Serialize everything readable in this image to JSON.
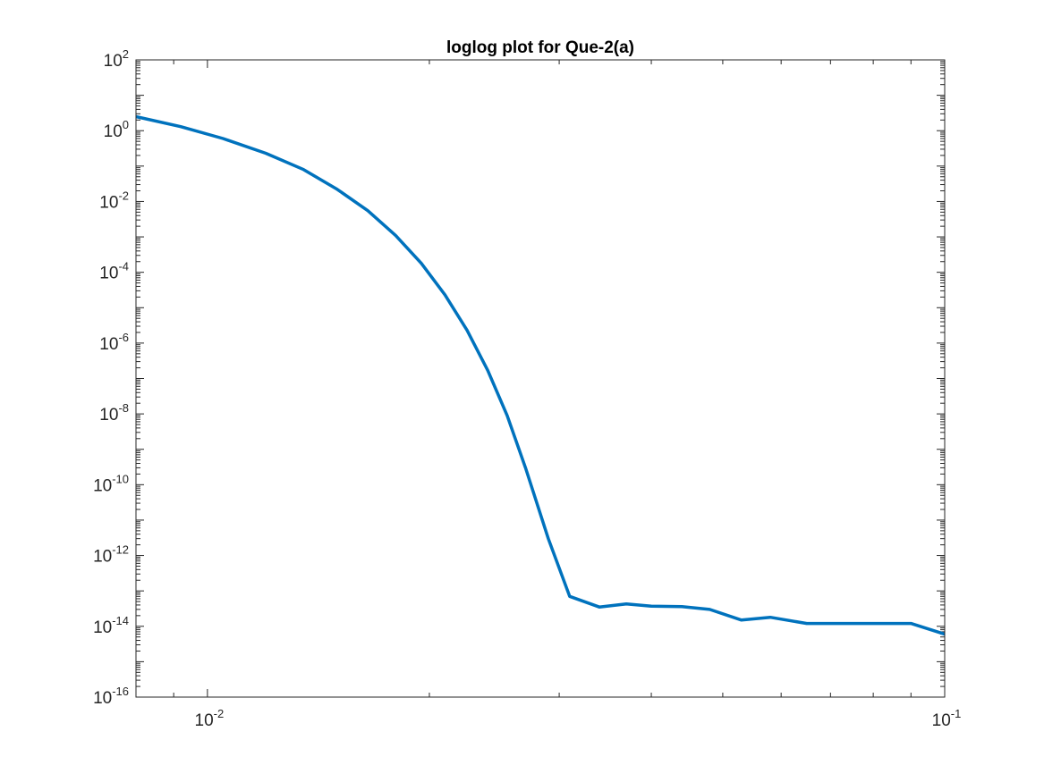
{
  "chart_data": {
    "type": "line",
    "title": "loglog plot for Que-2(a)",
    "xlabel": "",
    "ylabel": "",
    "xscale": "log",
    "yscale": "log",
    "xlim": [
      0.008,
      0.1
    ],
    "ylim": [
      1e-16,
      100
    ],
    "x_ticks": [
      {
        "value": 0.01,
        "base": "10",
        "exp": "-2"
      },
      {
        "value": 0.1,
        "base": "10",
        "exp": "-1"
      }
    ],
    "y_ticks": [
      {
        "value": 100.0,
        "base": "10",
        "exp": "2"
      },
      {
        "value": 1.0,
        "base": "10",
        "exp": "0"
      },
      {
        "value": 0.01,
        "base": "10",
        "exp": "-2"
      },
      {
        "value": 0.0001,
        "base": "10",
        "exp": "-4"
      },
      {
        "value": 1e-06,
        "base": "10",
        "exp": "-6"
      },
      {
        "value": 1e-08,
        "base": "10",
        "exp": "-8"
      },
      {
        "value": 1e-10,
        "base": "10",
        "exp": "-10"
      },
      {
        "value": 1e-12,
        "base": "10",
        "exp": "-12"
      },
      {
        "value": 1e-14,
        "base": "10",
        "exp": "-14"
      },
      {
        "value": 1e-16,
        "base": "10",
        "exp": "-16"
      }
    ],
    "grid": false,
    "box": true,
    "series": [
      {
        "color": "#0072BD",
        "x": [
          0.008,
          0.0092,
          0.0105,
          0.012,
          0.0135,
          0.015,
          0.0165,
          0.018,
          0.0195,
          0.021,
          0.0225,
          0.024,
          0.0255,
          0.027,
          0.029,
          0.031,
          0.034,
          0.037,
          0.04,
          0.044,
          0.048,
          0.053,
          0.058,
          0.065,
          0.072,
          0.08,
          0.09,
          0.1
        ],
        "y": [
          2.5,
          1.3,
          0.6,
          0.23,
          0.08,
          0.022,
          0.0055,
          0.0011,
          0.00018,
          2.3e-05,
          2.3e-06,
          1.7e-07,
          9e-09,
          3e-10,
          3e-12,
          7e-14,
          3.5e-14,
          4.3e-14,
          3.7e-14,
          3.6e-14,
          3e-14,
          1.5e-14,
          1.8e-14,
          1.2e-14,
          1.2e-14,
          1.2e-14,
          1.2e-14,
          6e-15
        ]
      }
    ]
  }
}
